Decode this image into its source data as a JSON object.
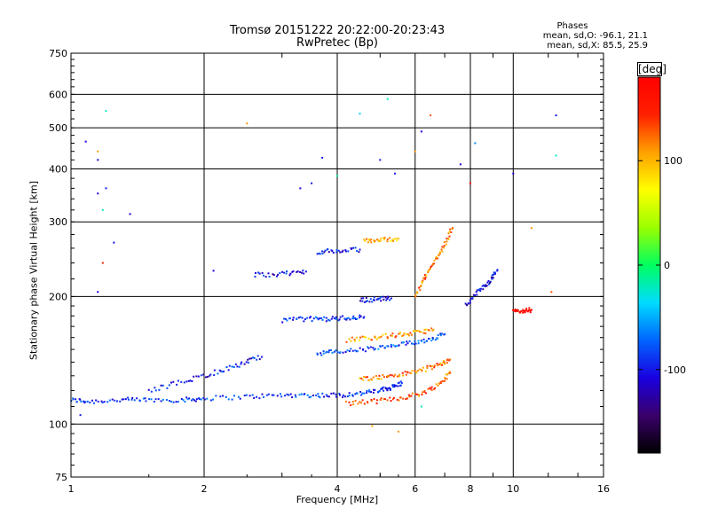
{
  "chart_data": {
    "type": "scatter",
    "title": "Tromsø 20151222 20:22:00-20:23:43",
    "subtitle": "RwPretec (Bp)",
    "xlabel": "Frequency [MHz]",
    "ylabel": "Stationary phase Virtual Height [km]",
    "x_scale": "log",
    "y_scale": "log",
    "xlim": [
      1,
      16
    ],
    "ylim": [
      75,
      750
    ],
    "x_ticks": [
      1,
      2,
      4,
      6,
      8,
      10,
      16
    ],
    "x_tick_labels": [
      "1",
      "2",
      "4",
      "6",
      "8",
      "10",
      "16"
    ],
    "y_ticks": [
      75,
      100,
      200,
      300,
      400,
      500,
      600,
      750
    ],
    "y_tick_labels": [
      "75",
      "100",
      "200",
      "300",
      "400",
      "500",
      "600",
      "750"
    ],
    "grid": true,
    "colorbar": {
      "label": "[deg]",
      "range": [
        -180,
        180
      ],
      "ticks": [
        100,
        0,
        -100
      ],
      "tick_labels": [
        "100",
        "0",
        "-100"
      ],
      "colors": [
        "#000000",
        "#3a006a",
        "#1a00e0",
        "#0064ff",
        "#00dcff",
        "#00ff60",
        "#9bff00",
        "#ffff00",
        "#ffa000",
        "#ff2000",
        "#ff0000"
      ]
    },
    "phase_stats": {
      "heading": "Phases",
      "line1": "mean, sd,O: -96.1, 21.1",
      "line2": "mean, sd,X:  85.5, 25.9"
    },
    "traces": [
      {
        "name": "",
        "x": [
          1.0,
          1.1,
          1.3,
          1.5,
          1.8,
          2.0,
          2.5,
          3.0,
          3.5,
          4.0,
          4.5,
          5.0,
          5.3,
          5.6
        ],
        "y": [
          114,
          113,
          114,
          114,
          114,
          115,
          116,
          117,
          117,
          117,
          118,
          120,
          122,
          125
        ],
        "phase": -90
      },
      {
        "name": "",
        "x": [
          4.2,
          4.8,
          5.5,
          6.2,
          6.8,
          7.2
        ],
        "y": [
          112,
          113,
          115,
          118,
          124,
          132
        ],
        "phase": 130
      },
      {
        "name": "",
        "x": [
          4.5,
          5.0,
          5.6,
          6.2,
          6.8,
          7.2
        ],
        "y": [
          128,
          129,
          131,
          134,
          138,
          142
        ],
        "phase": 120
      },
      {
        "name": "",
        "x": [
          3.6,
          4.0,
          4.6,
          5.2,
          5.8,
          6.4,
          7.0
        ],
        "y": [
          147,
          148,
          150,
          152,
          155,
          158,
          163
        ],
        "phase": -80
      },
      {
        "name": "",
        "x": [
          4.2,
          4.8,
          5.4,
          6.0,
          6.6
        ],
        "y": [
          158,
          160,
          162,
          164,
          167
        ],
        "phase": 110
      },
      {
        "name": "",
        "x": [
          3.0,
          3.4,
          3.8,
          4.2,
          4.6
        ],
        "y": [
          176,
          177,
          177,
          178,
          179
        ],
        "phase": -90
      },
      {
        "name": "",
        "x": [
          4.5,
          4.9,
          5.3
        ],
        "y": [
          196,
          197,
          198
        ],
        "phase": -100
      },
      {
        "name": "",
        "x": [
          2.6,
          3.0,
          3.4
        ],
        "y": [
          225,
          226,
          229
        ],
        "phase": -100
      },
      {
        "name": "",
        "x": [
          3.6,
          4.0,
          4.5
        ],
        "y": [
          255,
          256,
          258
        ],
        "phase": -100
      },
      {
        "name": "",
        "x": [
          4.6,
          5.0,
          5.5
        ],
        "y": [
          270,
          272,
          274
        ],
        "phase": 100
      },
      {
        "name": "",
        "x": [
          6.0,
          6.3,
          6.6,
          7.0,
          7.3
        ],
        "y": [
          200,
          220,
          240,
          265,
          290
        ],
        "phase": 120
      },
      {
        "name": "",
        "x": [
          7.8,
          8.3,
          8.8,
          9.2
        ],
        "y": [
          190,
          205,
          215,
          230
        ],
        "phase": -110
      },
      {
        "name": "",
        "x": [
          1.5,
          1.8,
          2.1,
          2.4,
          2.7
        ],
        "y": [
          120,
          126,
          132,
          138,
          144
        ],
        "phase": -100
      },
      {
        "name": "",
        "x": [
          10.0,
          10.5,
          11.0
        ],
        "y": [
          184,
          185,
          186
        ],
        "phase": 170
      }
    ],
    "scattered_points": [
      {
        "x": 1.08,
        "y": 464,
        "phase": -110
      },
      {
        "x": 1.15,
        "y": 440,
        "phase": 110
      },
      {
        "x": 1.15,
        "y": 420,
        "phase": -110
      },
      {
        "x": 1.2,
        "y": 548,
        "phase": -20
      },
      {
        "x": 1.15,
        "y": 350,
        "phase": -110
      },
      {
        "x": 1.2,
        "y": 360,
        "phase": -100
      },
      {
        "x": 1.18,
        "y": 320,
        "phase": -20
      },
      {
        "x": 1.36,
        "y": 313,
        "phase": -110
      },
      {
        "x": 1.25,
        "y": 268,
        "phase": -100
      },
      {
        "x": 1.18,
        "y": 240,
        "phase": 150
      },
      {
        "x": 1.15,
        "y": 205,
        "phase": -110
      },
      {
        "x": 2.5,
        "y": 512,
        "phase": 110
      },
      {
        "x": 3.3,
        "y": 360,
        "phase": -110
      },
      {
        "x": 3.5,
        "y": 370,
        "phase": -100
      },
      {
        "x": 3.7,
        "y": 425,
        "phase": -100
      },
      {
        "x": 4.0,
        "y": 385,
        "phase": -20
      },
      {
        "x": 4.5,
        "y": 540,
        "phase": -40
      },
      {
        "x": 5.2,
        "y": 585,
        "phase": -20
      },
      {
        "x": 5.0,
        "y": 420,
        "phase": -100
      },
      {
        "x": 5.4,
        "y": 390,
        "phase": -100
      },
      {
        "x": 6.0,
        "y": 440,
        "phase": 110
      },
      {
        "x": 6.2,
        "y": 490,
        "phase": -110
      },
      {
        "x": 6.5,
        "y": 535,
        "phase": 130
      },
      {
        "x": 7.6,
        "y": 410,
        "phase": -110
      },
      {
        "x": 8.2,
        "y": 460,
        "phase": -60
      },
      {
        "x": 8.0,
        "y": 370,
        "phase": 170
      },
      {
        "x": 10.0,
        "y": 390,
        "phase": -110
      },
      {
        "x": 12.5,
        "y": 535,
        "phase": -100
      },
      {
        "x": 12.5,
        "y": 430,
        "phase": -20
      },
      {
        "x": 11.0,
        "y": 290,
        "phase": 110
      },
      {
        "x": 2.1,
        "y": 230,
        "phase": -110
      },
      {
        "x": 5.5,
        "y": 96,
        "phase": 110
      },
      {
        "x": 4.8,
        "y": 99,
        "phase": 110
      },
      {
        "x": 6.2,
        "y": 110,
        "phase": -20
      },
      {
        "x": 1.05,
        "y": 105,
        "phase": -100
      },
      {
        "x": 12.2,
        "y": 205,
        "phase": 130
      }
    ]
  }
}
